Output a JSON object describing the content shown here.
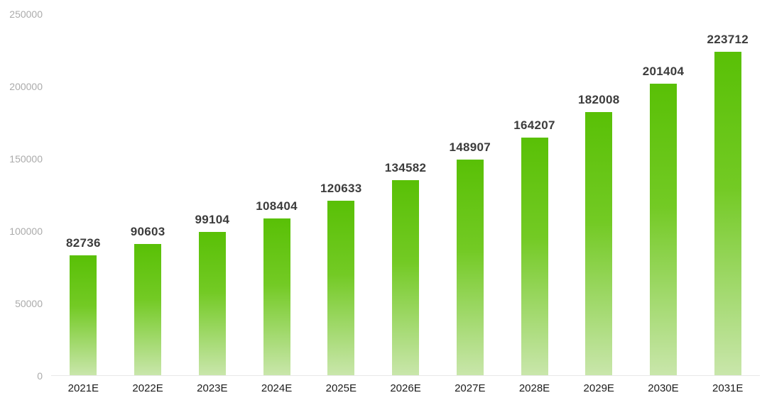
{
  "chart_data": {
    "type": "bar",
    "categories": [
      "2021E",
      "2022E",
      "2023E",
      "2024E",
      "2025E",
      "2026E",
      "2027E",
      "2028E",
      "2029E",
      "2030E",
      "2031E"
    ],
    "values": [
      82736,
      90603,
      99104,
      108404,
      120633,
      134582,
      148907,
      164207,
      182008,
      201404,
      223712
    ],
    "title": "",
    "xlabel": "",
    "ylabel": "",
    "ylim": [
      0,
      250000
    ],
    "yticks": [
      0,
      50000,
      100000,
      150000,
      200000,
      250000
    ],
    "grid": false,
    "legend": null,
    "value_labels_shown": true
  },
  "colors": {
    "background": "#ffffff",
    "bar_gradient_top": "#59c006",
    "bar_gradient_mid": "#73ca24",
    "bar_gradient_bottom": "#c9e6ab",
    "value_label": "#3c3c3c",
    "y_tick_label": "#ababab",
    "x_tick_label": "#1c1c1c",
    "axis_line": "#e8e8e8"
  }
}
